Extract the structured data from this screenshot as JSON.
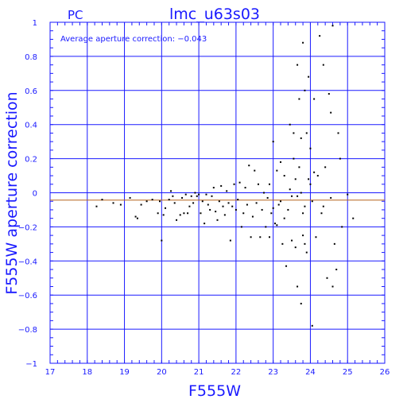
{
  "chart_data": {
    "type": "scatter",
    "title": "lmc_u63s03",
    "subtitle": "PC",
    "xlabel": "F555W",
    "ylabel": "F555W aperture correction",
    "annotation": "Average aperture correction: −0.043",
    "average_value": -0.043,
    "xlim": [
      17,
      26
    ],
    "ylim": [
      -1,
      1
    ],
    "x_ticks": [
      17,
      18,
      19,
      20,
      21,
      22,
      23,
      24,
      25,
      26
    ],
    "y_ticks": [
      -1,
      -0.8,
      -0.6,
      -0.4,
      -0.2,
      0,
      0.2,
      0.4,
      0.6,
      0.8,
      1
    ],
    "x_tick_labels": [
      "17",
      "18",
      "19",
      "20",
      "21",
      "22",
      "23",
      "24",
      "25",
      "26"
    ],
    "y_tick_labels": [
      "−1",
      "−0.8",
      "−0.6",
      "−0.4",
      "−0.2",
      "0",
      "0.2",
      "0.4",
      "0.6",
      "0.8",
      "1"
    ],
    "grid": true,
    "colors": {
      "frame": "#1a1aff",
      "average_line": "#b5651d",
      "points": "#000000"
    },
    "points": [
      [
        18.25,
        -0.08
      ],
      [
        18.4,
        -0.04
      ],
      [
        18.7,
        -0.06
      ],
      [
        18.9,
        -0.07
      ],
      [
        19.15,
        -0.03
      ],
      [
        19.3,
        -0.14
      ],
      [
        19.35,
        -0.15
      ],
      [
        19.45,
        -0.07
      ],
      [
        19.6,
        -0.05
      ],
      [
        19.75,
        -0.04
      ],
      [
        19.9,
        -0.12
      ],
      [
        19.95,
        -0.05
      ],
      [
        20.0,
        -0.28
      ],
      [
        20.05,
        -0.13
      ],
      [
        20.1,
        -0.09
      ],
      [
        20.2,
        -0.04
      ],
      [
        20.25,
        0.01
      ],
      [
        20.3,
        -0.02
      ],
      [
        20.35,
        -0.06
      ],
      [
        20.4,
        -0.16
      ],
      [
        20.5,
        -0.13
      ],
      [
        20.55,
        -0.03
      ],
      [
        20.6,
        -0.12
      ],
      [
        20.65,
        -0.01
      ],
      [
        20.7,
        -0.12
      ],
      [
        20.75,
        -0.08
      ],
      [
        20.8,
        -0.02
      ],
      [
        20.85,
        -0.06
      ],
      [
        20.9,
        0.0
      ],
      [
        20.95,
        -0.02
      ],
      [
        21.0,
        -0.01
      ],
      [
        21.05,
        -0.12
      ],
      [
        21.1,
        -0.05
      ],
      [
        21.15,
        -0.18
      ],
      [
        21.2,
        -0.01
      ],
      [
        21.25,
        -0.07
      ],
      [
        21.3,
        -0.1
      ],
      [
        21.35,
        -0.02
      ],
      [
        21.4,
        0.03
      ],
      [
        21.45,
        -0.11
      ],
      [
        21.5,
        -0.16
      ],
      [
        21.55,
        -0.05
      ],
      [
        21.6,
        0.04
      ],
      [
        21.65,
        -0.08
      ],
      [
        21.7,
        -0.13
      ],
      [
        21.75,
        0.01
      ],
      [
        21.8,
        -0.06
      ],
      [
        21.85,
        -0.28
      ],
      [
        21.9,
        -0.08
      ],
      [
        21.95,
        0.05
      ],
      [
        22.0,
        -0.1
      ],
      [
        22.05,
        -0.04
      ],
      [
        22.1,
        0.06
      ],
      [
        22.15,
        -0.2
      ],
      [
        22.2,
        -0.12
      ],
      [
        22.25,
        0.03
      ],
      [
        22.3,
        -0.07
      ],
      [
        22.35,
        0.16
      ],
      [
        22.4,
        -0.26
      ],
      [
        22.45,
        -0.14
      ],
      [
        22.5,
        0.13
      ],
      [
        22.55,
        -0.06
      ],
      [
        22.6,
        0.05
      ],
      [
        22.65,
        -0.26
      ],
      [
        22.7,
        -0.1
      ],
      [
        22.75,
        0.0
      ],
      [
        22.8,
        -0.2
      ],
      [
        22.85,
        -0.03
      ],
      [
        22.9,
        -0.26
      ],
      [
        22.95,
        -0.12
      ],
      [
        23.0,
        0.3
      ],
      [
        23.05,
        -0.18
      ],
      [
        23.1,
        0.13
      ],
      [
        23.15,
        -0.07
      ],
      [
        23.2,
        0.18
      ],
      [
        23.25,
        -0.3
      ],
      [
        23.3,
        0.1
      ],
      [
        23.35,
        -0.43
      ],
      [
        23.4,
        -0.1
      ],
      [
        23.45,
        0.4
      ],
      [
        23.5,
        -0.28
      ],
      [
        23.55,
        0.2
      ],
      [
        23.6,
        -0.32
      ],
      [
        23.65,
        0.75
      ],
      [
        23.7,
        0.55
      ],
      [
        23.75,
        -0.65
      ],
      [
        23.8,
        0.88
      ],
      [
        23.85,
        -0.3
      ],
      [
        23.9,
        0.35
      ],
      [
        23.95,
        0.68
      ],
      [
        24.0,
        0.05
      ],
      [
        24.05,
        -0.78
      ],
      [
        24.1,
        0.55
      ],
      [
        24.15,
        -0.26
      ],
      [
        24.2,
        0.1
      ],
      [
        24.25,
        0.92
      ],
      [
        24.3,
        -0.12
      ],
      [
        24.35,
        0.75
      ],
      [
        24.4,
        0.15
      ],
      [
        24.45,
        -0.5
      ],
      [
        24.5,
        0.58
      ],
      [
        24.55,
        0.47
      ],
      [
        24.6,
        0.98
      ],
      [
        24.65,
        -0.3
      ],
      [
        24.7,
        -0.45
      ],
      [
        24.75,
        0.35
      ],
      [
        24.8,
        0.2
      ],
      [
        24.85,
        -0.2
      ],
      [
        25.0,
        -0.01
      ],
      [
        25.15,
        -0.15
      ],
      [
        23.65,
        -0.02
      ],
      [
        23.75,
        0.0
      ],
      [
        23.85,
        -0.08
      ],
      [
        23.6,
        0.08
      ],
      [
        23.5,
        -0.02
      ],
      [
        23.95,
        0.08
      ],
      [
        24.05,
        -0.05
      ],
      [
        23.7,
        0.15
      ],
      [
        23.8,
        -0.12
      ],
      [
        23.55,
        0.35
      ],
      [
        24.1,
        0.12
      ],
      [
        23.45,
        0.02
      ],
      [
        23.3,
        -0.15
      ],
      [
        23.2,
        -0.05
      ],
      [
        23.1,
        -0.19
      ],
      [
        22.9,
        0.05
      ],
      [
        23.0,
        -0.09
      ],
      [
        24.35,
        -0.08
      ],
      [
        24.55,
        -0.03
      ],
      [
        24.6,
        -0.55
      ],
      [
        23.9,
        -0.35
      ],
      [
        23.65,
        -0.55
      ],
      [
        23.8,
        -0.25
      ],
      [
        23.85,
        0.6
      ],
      [
        23.75,
        0.32
      ],
      [
        24.0,
        0.26
      ]
    ]
  }
}
